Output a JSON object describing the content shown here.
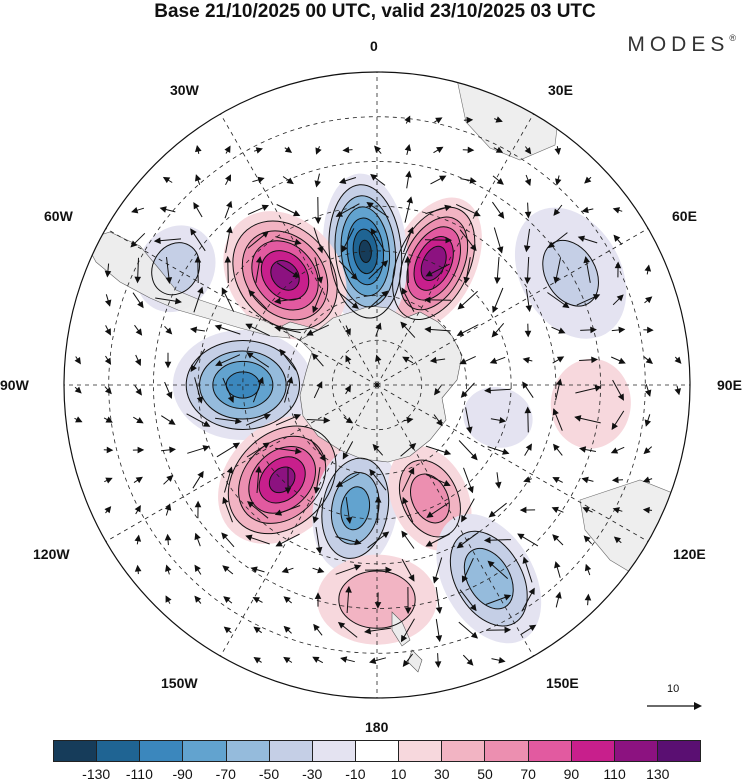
{
  "title": "Base 21/10/2025 00 UTC, valid 23/10/2025 03 UTC",
  "brand": "MODES",
  "brand_mark": "®",
  "longitude_labels": {
    "n": "0",
    "ne": "30E",
    "e1": "60E",
    "e": "90E",
    "se1": "120E",
    "se": "150E",
    "s": "180",
    "sw": "150W",
    "sw1": "120W",
    "w": "90W",
    "nw1": "60W",
    "nw": "30W"
  },
  "reference_vector": {
    "label": "10"
  },
  "colorbar": {
    "colors": [
      "#163c5a",
      "#1f6493",
      "#3b87bd",
      "#62a3cf",
      "#95bbdc",
      "#c5cfe6",
      "#e4e3f1",
      "#ffffff",
      "#f7d8dd",
      "#f2b4c3",
      "#ec8fb0",
      "#e25aa0",
      "#c81f8c",
      "#8c1280",
      "#5a0f72"
    ],
    "ticks": [
      "-130",
      "-110",
      "-90",
      "-70",
      "-50",
      "-30",
      "-10",
      "10",
      "30",
      "50",
      "70",
      "90",
      "110",
      "130"
    ]
  },
  "anomaly_centers": [
    {
      "name": "pos-30e",
      "lon": 25,
      "lat": -60,
      "value": 125,
      "rx": 42,
      "ry": 70
    },
    {
      "name": "neg-0",
      "lon": -5,
      "lat": -60,
      "value": -130,
      "rx": 42,
      "ry": 78
    },
    {
      "name": "pos-45w",
      "lon": -40,
      "lat": -58,
      "value": 120,
      "rx": 55,
      "ry": 70
    },
    {
      "name": "neg-90w",
      "lon": -90,
      "lat": -60,
      "value": -95,
      "rx": 55,
      "ry": 70
    },
    {
      "name": "pos-130w",
      "lon": -135,
      "lat": -60,
      "value": 115,
      "rx": 55,
      "ry": 72
    },
    {
      "name": "neg-170w",
      "lon": -170,
      "lat": -62,
      "value": -80,
      "rx": 42,
      "ry": 65
    },
    {
      "name": "pos-160e",
      "lon": 155,
      "lat": -62,
      "value": 65,
      "rx": 38,
      "ry": 55
    },
    {
      "name": "neg-150e",
      "lon": 150,
      "lat": -40,
      "value": -65,
      "rx": 45,
      "ry": 70
    },
    {
      "name": "pos-180-north",
      "lon": 180,
      "lat": -42,
      "value": 45,
      "rx": 60,
      "ry": 45
    },
    {
      "name": "neg-60w",
      "lon": -60,
      "lat": -38,
      "value": -40,
      "rx": 45,
      "ry": 38
    },
    {
      "name": "neg-60e",
      "lon": 60,
      "lat": -40,
      "value": -30,
      "rx": 70,
      "ry": 50
    },
    {
      "name": "pos-90e",
      "lon": 95,
      "lat": -42,
      "value": 25,
      "rx": 45,
      "ry": 40
    },
    {
      "name": "neg-100e",
      "lon": 105,
      "lat": -62,
      "value": -25,
      "rx": 30,
      "ry": 35
    }
  ]
}
